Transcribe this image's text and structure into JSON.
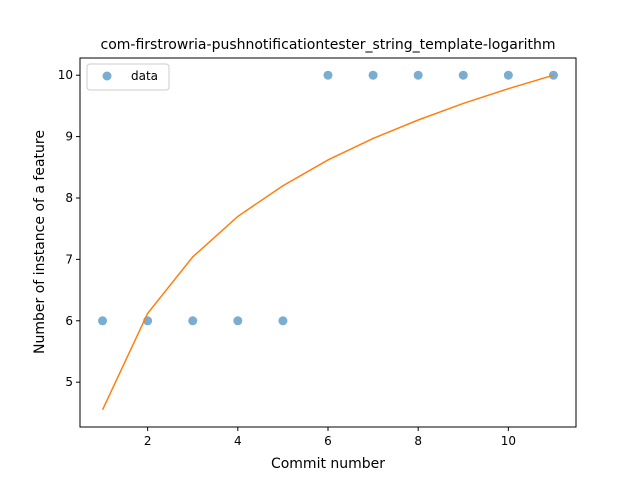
{
  "chart_data": {
    "type": "scatter",
    "title": "com-firstrowria-pushnotificationtester_string_template-logarithm",
    "xlabel": "Commit number",
    "ylabel": "Number of instance of a feature",
    "xlim": [
      0.5,
      11.5
    ],
    "ylim": [
      4.27,
      10.28
    ],
    "xticks": [
      2,
      4,
      6,
      8,
      10
    ],
    "yticks": [
      5,
      6,
      7,
      8,
      9,
      10
    ],
    "grid": false,
    "legend": {
      "placement": "top-left",
      "entries": [
        "data"
      ]
    },
    "series": [
      {
        "name": "data",
        "kind": "scatter",
        "color": "#1f77b4",
        "x": [
          1,
          2,
          3,
          4,
          5,
          6,
          7,
          8,
          9,
          10,
          11
        ],
        "y": [
          6,
          6,
          6,
          6,
          6,
          10,
          10,
          10,
          10,
          10,
          10
        ]
      },
      {
        "kind": "line",
        "color": "#ff7f0e",
        "x": [
          1,
          2,
          3,
          4,
          5,
          6,
          7,
          8,
          9,
          10,
          11
        ],
        "y": [
          4.55,
          6.12,
          7.04,
          7.7,
          8.2,
          8.62,
          8.97,
          9.27,
          9.54,
          9.78,
          10.0
        ]
      }
    ]
  }
}
